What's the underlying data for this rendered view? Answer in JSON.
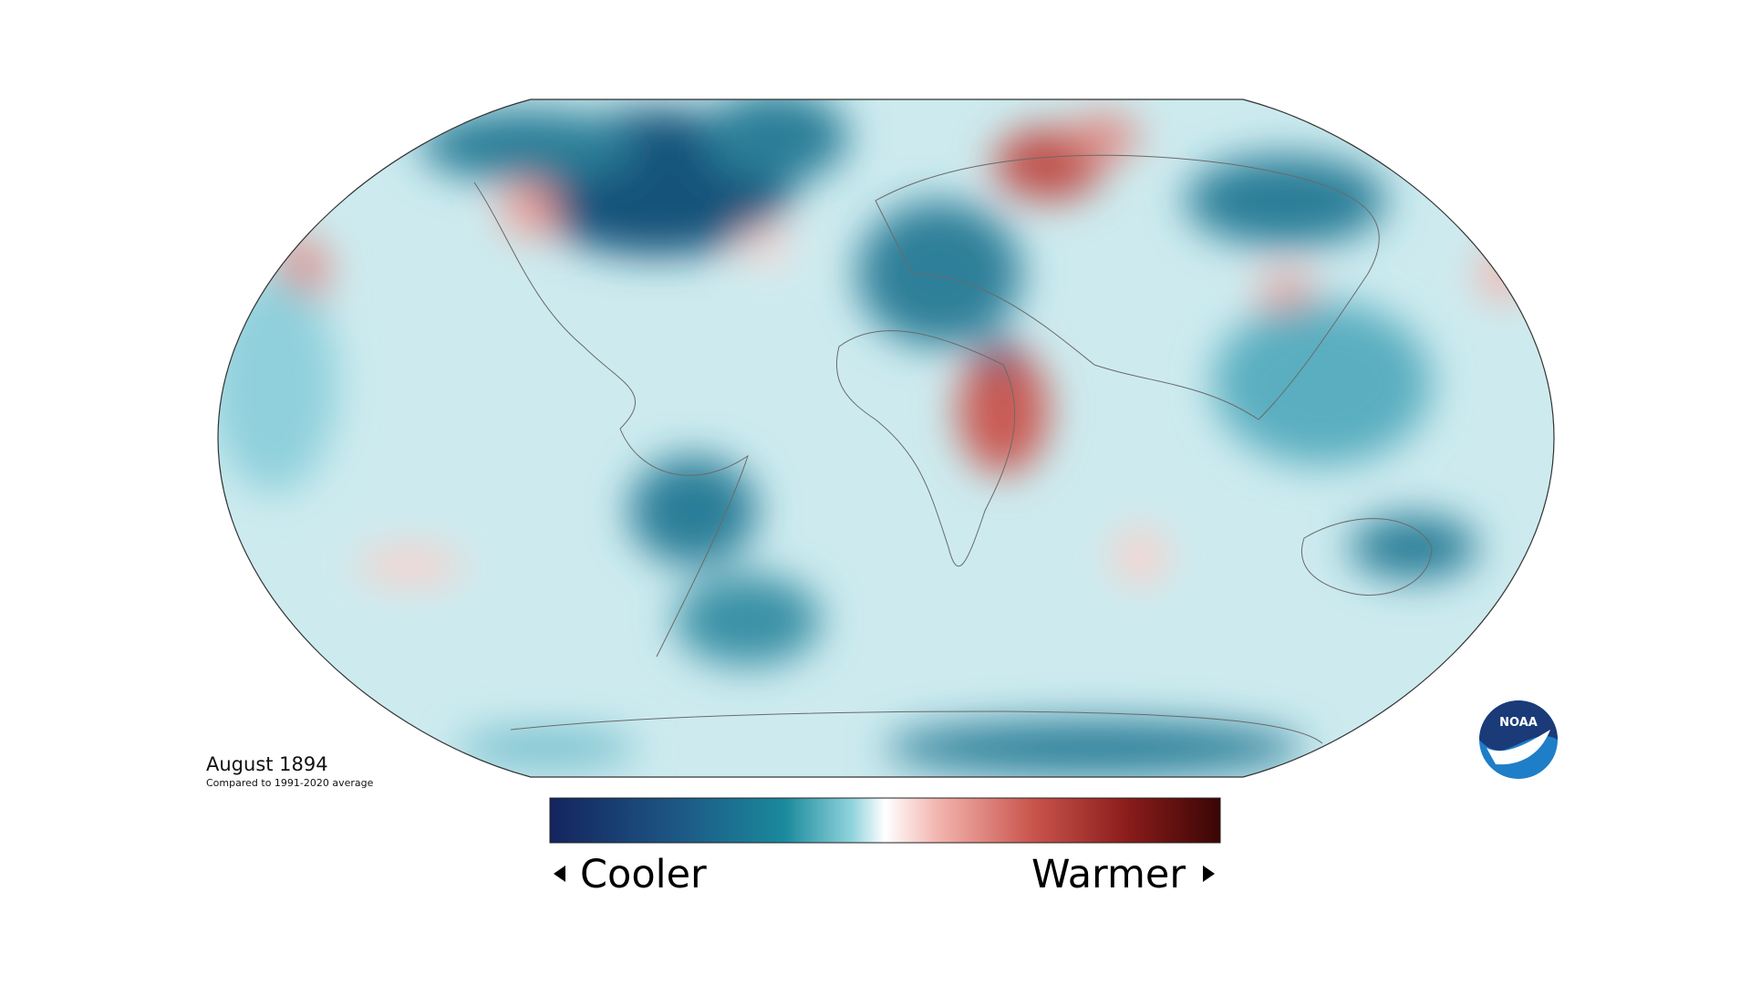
{
  "map": {
    "period": "August 1894",
    "baseline_note": "Compared to 1991-2020 average"
  },
  "legend": {
    "low_label": "Cooler",
    "high_label": "Warmer"
  },
  "logo": {
    "text": "NOAA"
  }
}
